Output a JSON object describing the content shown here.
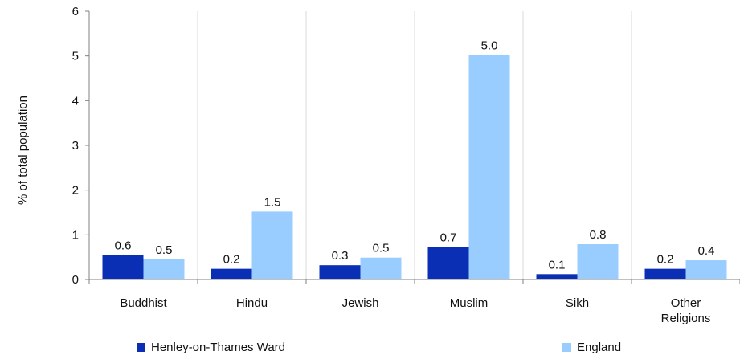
{
  "chart_data": {
    "type": "bar",
    "categories": [
      "Buddhist",
      "Hindu",
      "Jewish",
      "Muslim",
      "Sikh",
      "Other Religions"
    ],
    "series": [
      {
        "name": "Henley-on-Thames Ward",
        "color": "#0a2fb4",
        "values": [
          0.55,
          0.24,
          0.32,
          0.73,
          0.12,
          0.24
        ],
        "labels": [
          "0.6",
          "0.2",
          "0.3",
          "0.7",
          "0.1",
          "0.2"
        ]
      },
      {
        "name": "England",
        "color": "#99ccff",
        "values": [
          0.45,
          1.52,
          0.49,
          5.02,
          0.79,
          0.43
        ],
        "labels": [
          "0.5",
          "1.5",
          "0.5",
          "5.0",
          "0.8",
          "0.4"
        ]
      }
    ],
    "ylabel": "% of total population",
    "xlabel": "",
    "ylim": [
      0,
      6
    ],
    "yticks": [
      "0",
      "1",
      "2",
      "3",
      "4",
      "5",
      "6"
    ],
    "grid": "vertical separators between categories",
    "legend_position": "bottom"
  }
}
